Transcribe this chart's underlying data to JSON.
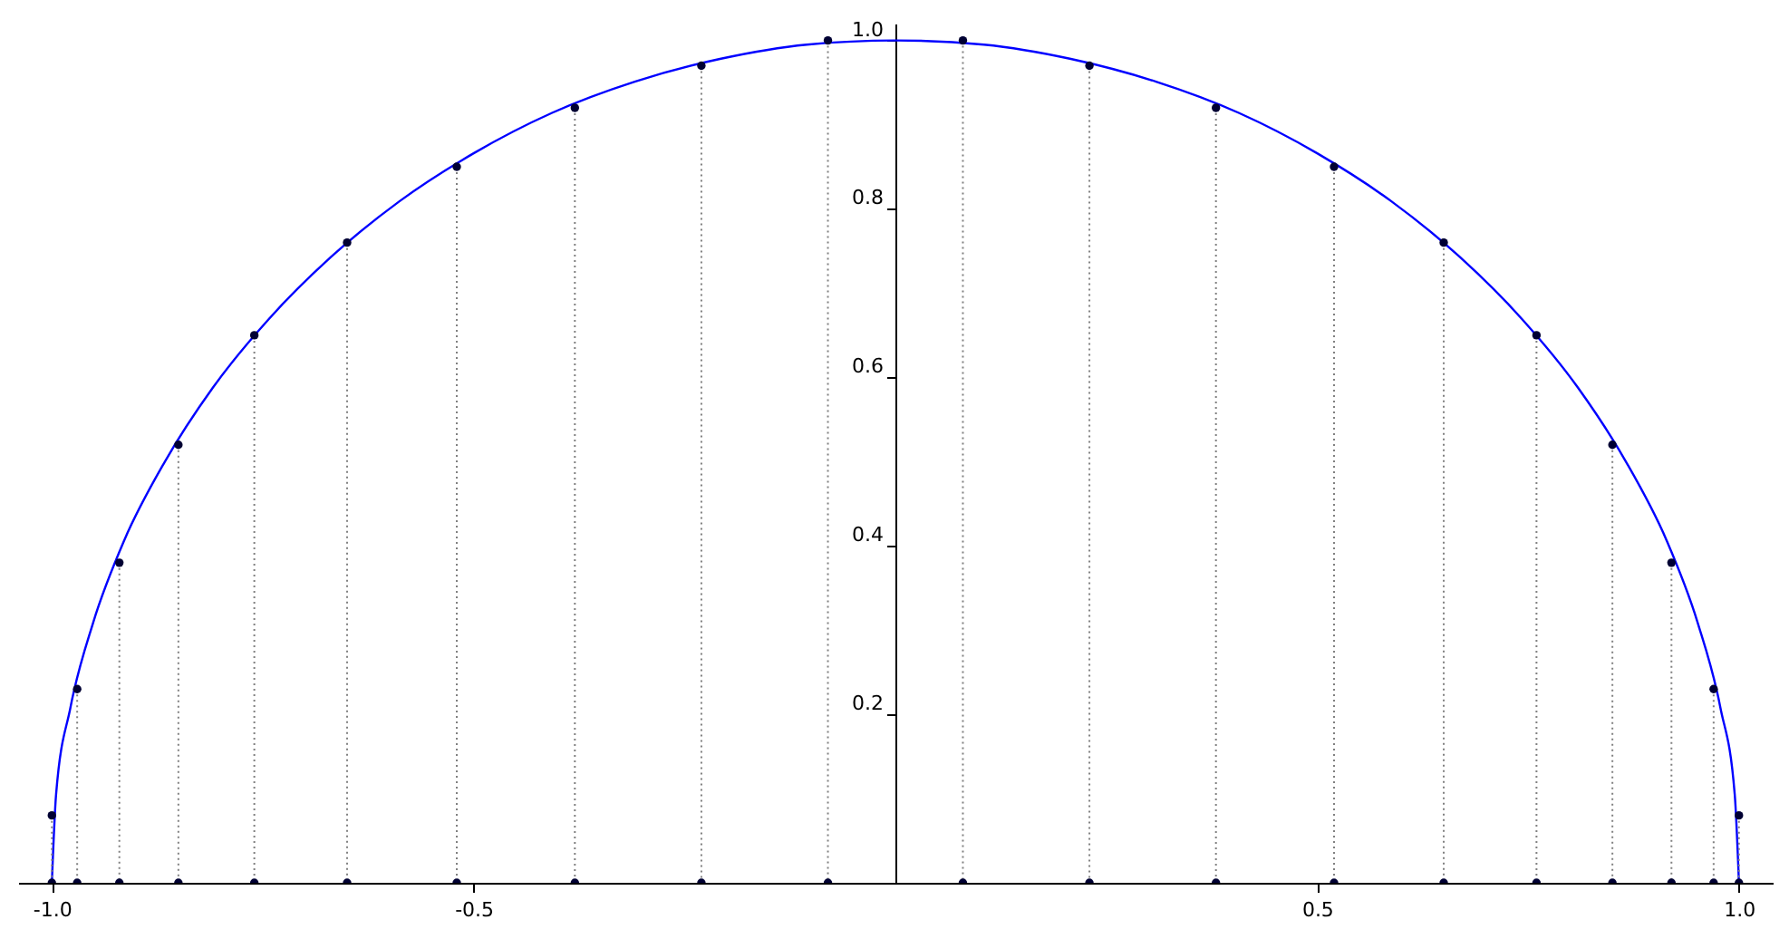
{
  "chart_data": {
    "type": "line",
    "xlim": [
      -1.04,
      1.04
    ],
    "ylim": [
      0,
      1.02
    ],
    "xticks": [
      {
        "value": -1,
        "label": "-1.0"
      },
      {
        "value": -0.5,
        "label": "-0.5"
      },
      {
        "value": 0.5,
        "label": "0.5"
      },
      {
        "value": 1,
        "label": "1.0"
      }
    ],
    "yticks": [
      0.2,
      0.4,
      0.6,
      0.8,
      {
        "value": 1,
        "label": "1.0"
      }
    ],
    "grid": false,
    "series": [
      {
        "type": "line",
        "color": "#0000ff",
        "x": [
          -1.0,
          -0.995,
          -0.978,
          -0.951,
          -0.914,
          -0.866,
          -0.809,
          -0.743,
          -0.669,
          -0.588,
          -0.5,
          -0.407,
          -0.309,
          -0.208,
          -0.105,
          0,
          0.105,
          0.208,
          0.309,
          0.407,
          0.5,
          0.588,
          0.669,
          0.743,
          0.809,
          0.866,
          0.914,
          0.951,
          0.978,
          0.995,
          1.0
        ],
        "values": [
          0,
          0.105,
          0.208,
          0.309,
          0.407,
          0.5,
          0.588,
          0.669,
          0.743,
          0.809,
          0.866,
          0.914,
          0.951,
          0.978,
          0.995,
          1.0,
          0.995,
          0.978,
          0.951,
          0.914,
          0.866,
          0.809,
          0.743,
          0.669,
          0.588,
          0.5,
          0.407,
          0.309,
          0.208,
          0.105,
          0
        ]
      },
      {
        "type": "lollipop",
        "color": "#000033",
        "marker": "circle",
        "line_style": "dotted",
        "x": [
          -1.0,
          -0.97,
          -0.92,
          -0.85,
          -0.76,
          -0.65,
          -0.52,
          -0.38,
          -0.23,
          -0.08,
          0.08,
          0.23,
          0.38,
          0.52,
          0.65,
          0.76,
          0.85,
          0.92,
          0.97,
          1.0
        ],
        "values": [
          0.08,
          0.23,
          0.38,
          0.52,
          0.65,
          0.76,
          0.85,
          0.92,
          0.97,
          1.0,
          1.0,
          0.97,
          0.92,
          0.85,
          0.76,
          0.65,
          0.52,
          0.38,
          0.23,
          0.08
        ]
      },
      {
        "type": "scatter",
        "color": "#000033",
        "marker": "circle",
        "x": [
          -1.0,
          -0.97,
          -0.92,
          -0.85,
          -0.76,
          -0.65,
          -0.52,
          -0.38,
          -0.23,
          -0.08,
          0.08,
          0.23,
          0.38,
          0.52,
          0.65,
          0.76,
          0.85,
          0.92,
          0.97,
          1.0
        ],
        "values": [
          0,
          0,
          0,
          0,
          0,
          0,
          0,
          0,
          0,
          0,
          0,
          0,
          0,
          0,
          0,
          0,
          0,
          0,
          0,
          0
        ]
      }
    ]
  }
}
